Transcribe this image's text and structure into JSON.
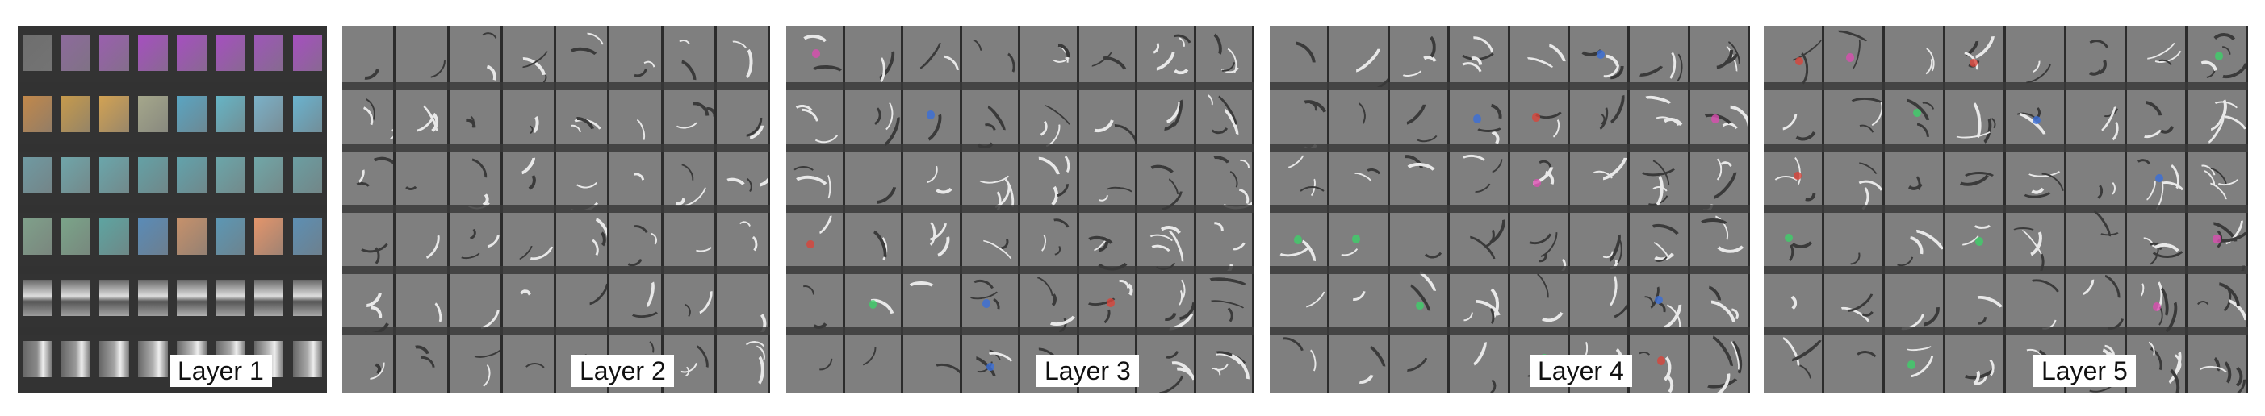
{
  "panels": [
    {
      "id": "layer1",
      "label": "Layer 1",
      "cols": 8,
      "rows": 6,
      "bg": "#333333"
    },
    {
      "id": "layer2",
      "label": "Layer 2",
      "cols": 8,
      "rows": 6,
      "bg": "#7f7f7f"
    },
    {
      "id": "layer3",
      "label": "Layer 3",
      "cols": 8,
      "rows": 6,
      "bg": "#7f7f7f"
    },
    {
      "id": "layer4",
      "label": "Layer 4",
      "cols": 8,
      "rows": 6,
      "bg": "#7f7f7f"
    },
    {
      "id": "layer5",
      "label": "Layer 5",
      "cols": 8,
      "rows": 6,
      "bg": "#7f7f7f"
    }
  ],
  "layer1_row_colors": [
    [
      "#6e6e6e",
      "#8d6a9c",
      "#9a5fae",
      "#a64fc0",
      "#a64fc0",
      "#a64fc0",
      "#9e56b8",
      "#a64fc0"
    ],
    [
      "#c2884a",
      "#c69a4c",
      "#d2a253",
      "#a5a78b",
      "#5aa5c2",
      "#66b5c6",
      "#7bb1c8",
      "#6ab3cf"
    ],
    [
      "#6f9aa2",
      "#6fa5a9",
      "#6aa6ab",
      "#64a1a6",
      "#62a3ac",
      "#6ba6aa",
      "#70a7a8",
      "#6b9ea2"
    ],
    [
      "#7fa08a",
      "#7aa489",
      "#5ea4a1",
      "#5a8bb7",
      "#c6916b",
      "#5c97b4",
      "#e3956b",
      "#5d8fb3"
    ],
    [
      "#9c9c9c",
      "#a0a0a0",
      "#a7a7a7",
      "#9e9e9e",
      "#b3b3b3",
      "#a4a4a4",
      "#a9a9a9",
      "#a8a8a8"
    ],
    [
      "#8a8a8a",
      "#9a9a9a",
      "#a4a4a4",
      "#b0b0b0",
      "#b8b8b8",
      "#a8a8a8",
      "#bcbcbc",
      "#aaaaaa"
    ]
  ]
}
